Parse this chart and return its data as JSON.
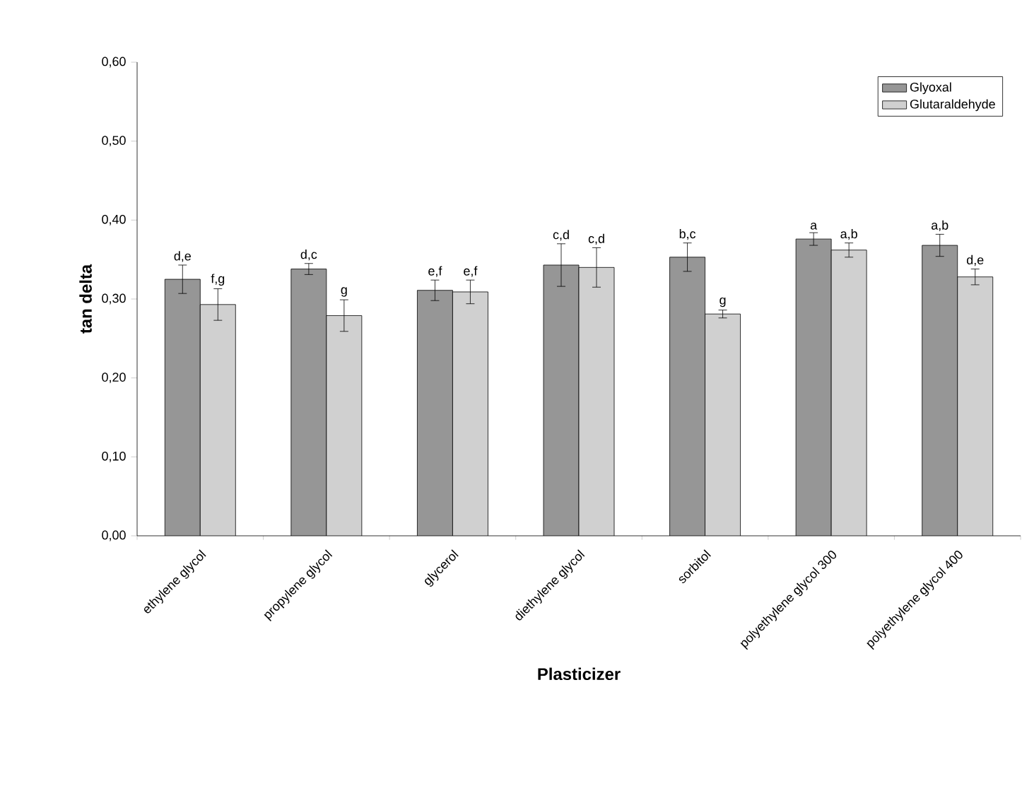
{
  "chart_data": {
    "type": "bar",
    "xlabel": "Plasticizer",
    "ylabel": "tan delta",
    "categories": [
      "ethylene glycol",
      "propylene glycol",
      "glycerol",
      "diethylene glycol",
      "sorbitol",
      "polyethylene glycol 300",
      "polyethylene glycol 400"
    ],
    "series": [
      {
        "name": "Glyoxal",
        "color": "#969696",
        "values": [
          0.325,
          0.338,
          0.311,
          0.343,
          0.353,
          0.376,
          0.368
        ],
        "errors": [
          0.018,
          0.007,
          0.013,
          0.027,
          0.018,
          0.008,
          0.014
        ],
        "value_labels": [
          "d,e",
          "d,c",
          "e,f",
          "c,d",
          "b,c",
          "a",
          "a,b"
        ]
      },
      {
        "name": "Glutaraldehyde",
        "color": "#d0d0d0",
        "values": [
          0.293,
          0.279,
          0.309,
          0.34,
          0.281,
          0.362,
          0.328
        ],
        "errors": [
          0.02,
          0.02,
          0.015,
          0.025,
          0.005,
          0.009,
          0.01
        ],
        "value_labels": [
          "f,g",
          "g",
          "e,f",
          "c,d",
          "g",
          "a,b",
          "d,e"
        ]
      }
    ],
    "ylim": [
      0,
      0.6
    ],
    "yticks": [
      {
        "value": 0,
        "label": "0,00"
      },
      {
        "value": 0.1,
        "label": "0,10"
      },
      {
        "value": 0.2,
        "label": "0,20"
      },
      {
        "value": 0.3,
        "label": "0,30"
      },
      {
        "value": 0.4,
        "label": "0,40"
      },
      {
        "value": 0.5,
        "label": "0,50"
      },
      {
        "value": 0.6,
        "label": "0,60"
      }
    ],
    "grid": false,
    "legend": "top right"
  }
}
